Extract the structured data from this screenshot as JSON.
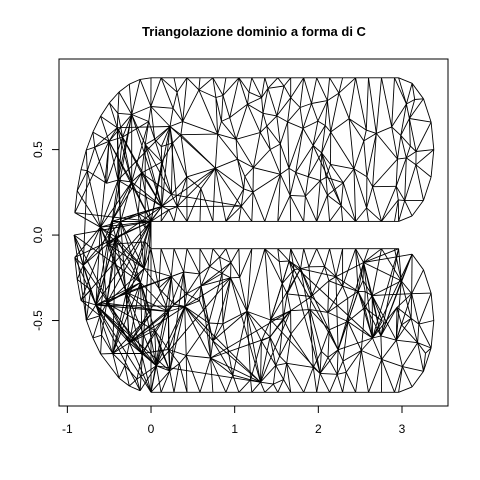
{
  "chart_data": {
    "type": "mesh",
    "title": "Triangolazione dominio a forma di C",
    "xlabel": "",
    "ylabel": "",
    "xlim": [
      -1.1,
      3.55
    ],
    "ylim": [
      -1.0,
      1.03
    ],
    "x_ticks": [
      -1,
      0,
      1,
      2,
      3
    ],
    "x_tick_labels": [
      "-1",
      "0",
      "1",
      "2",
      "3"
    ],
    "y_ticks": [
      -0.5,
      0.0,
      0.5
    ],
    "y_tick_labels": [
      "-0.5",
      "0.0",
      "0.5"
    ],
    "grid": false,
    "legend": "none",
    "domain": {
      "shape": "C",
      "outer_arc_center": [
        0,
        0
      ],
      "outer_radius": 0.92,
      "inner_radius": 0.08,
      "arm_end_center_upper": [
        2.96,
        0.5
      ],
      "arm_end_center_lower": [
        2.96,
        -0.5
      ],
      "arm_end_radius": 0.42,
      "arm_x_max": 3.0
    },
    "edge_color": "#000000"
  }
}
